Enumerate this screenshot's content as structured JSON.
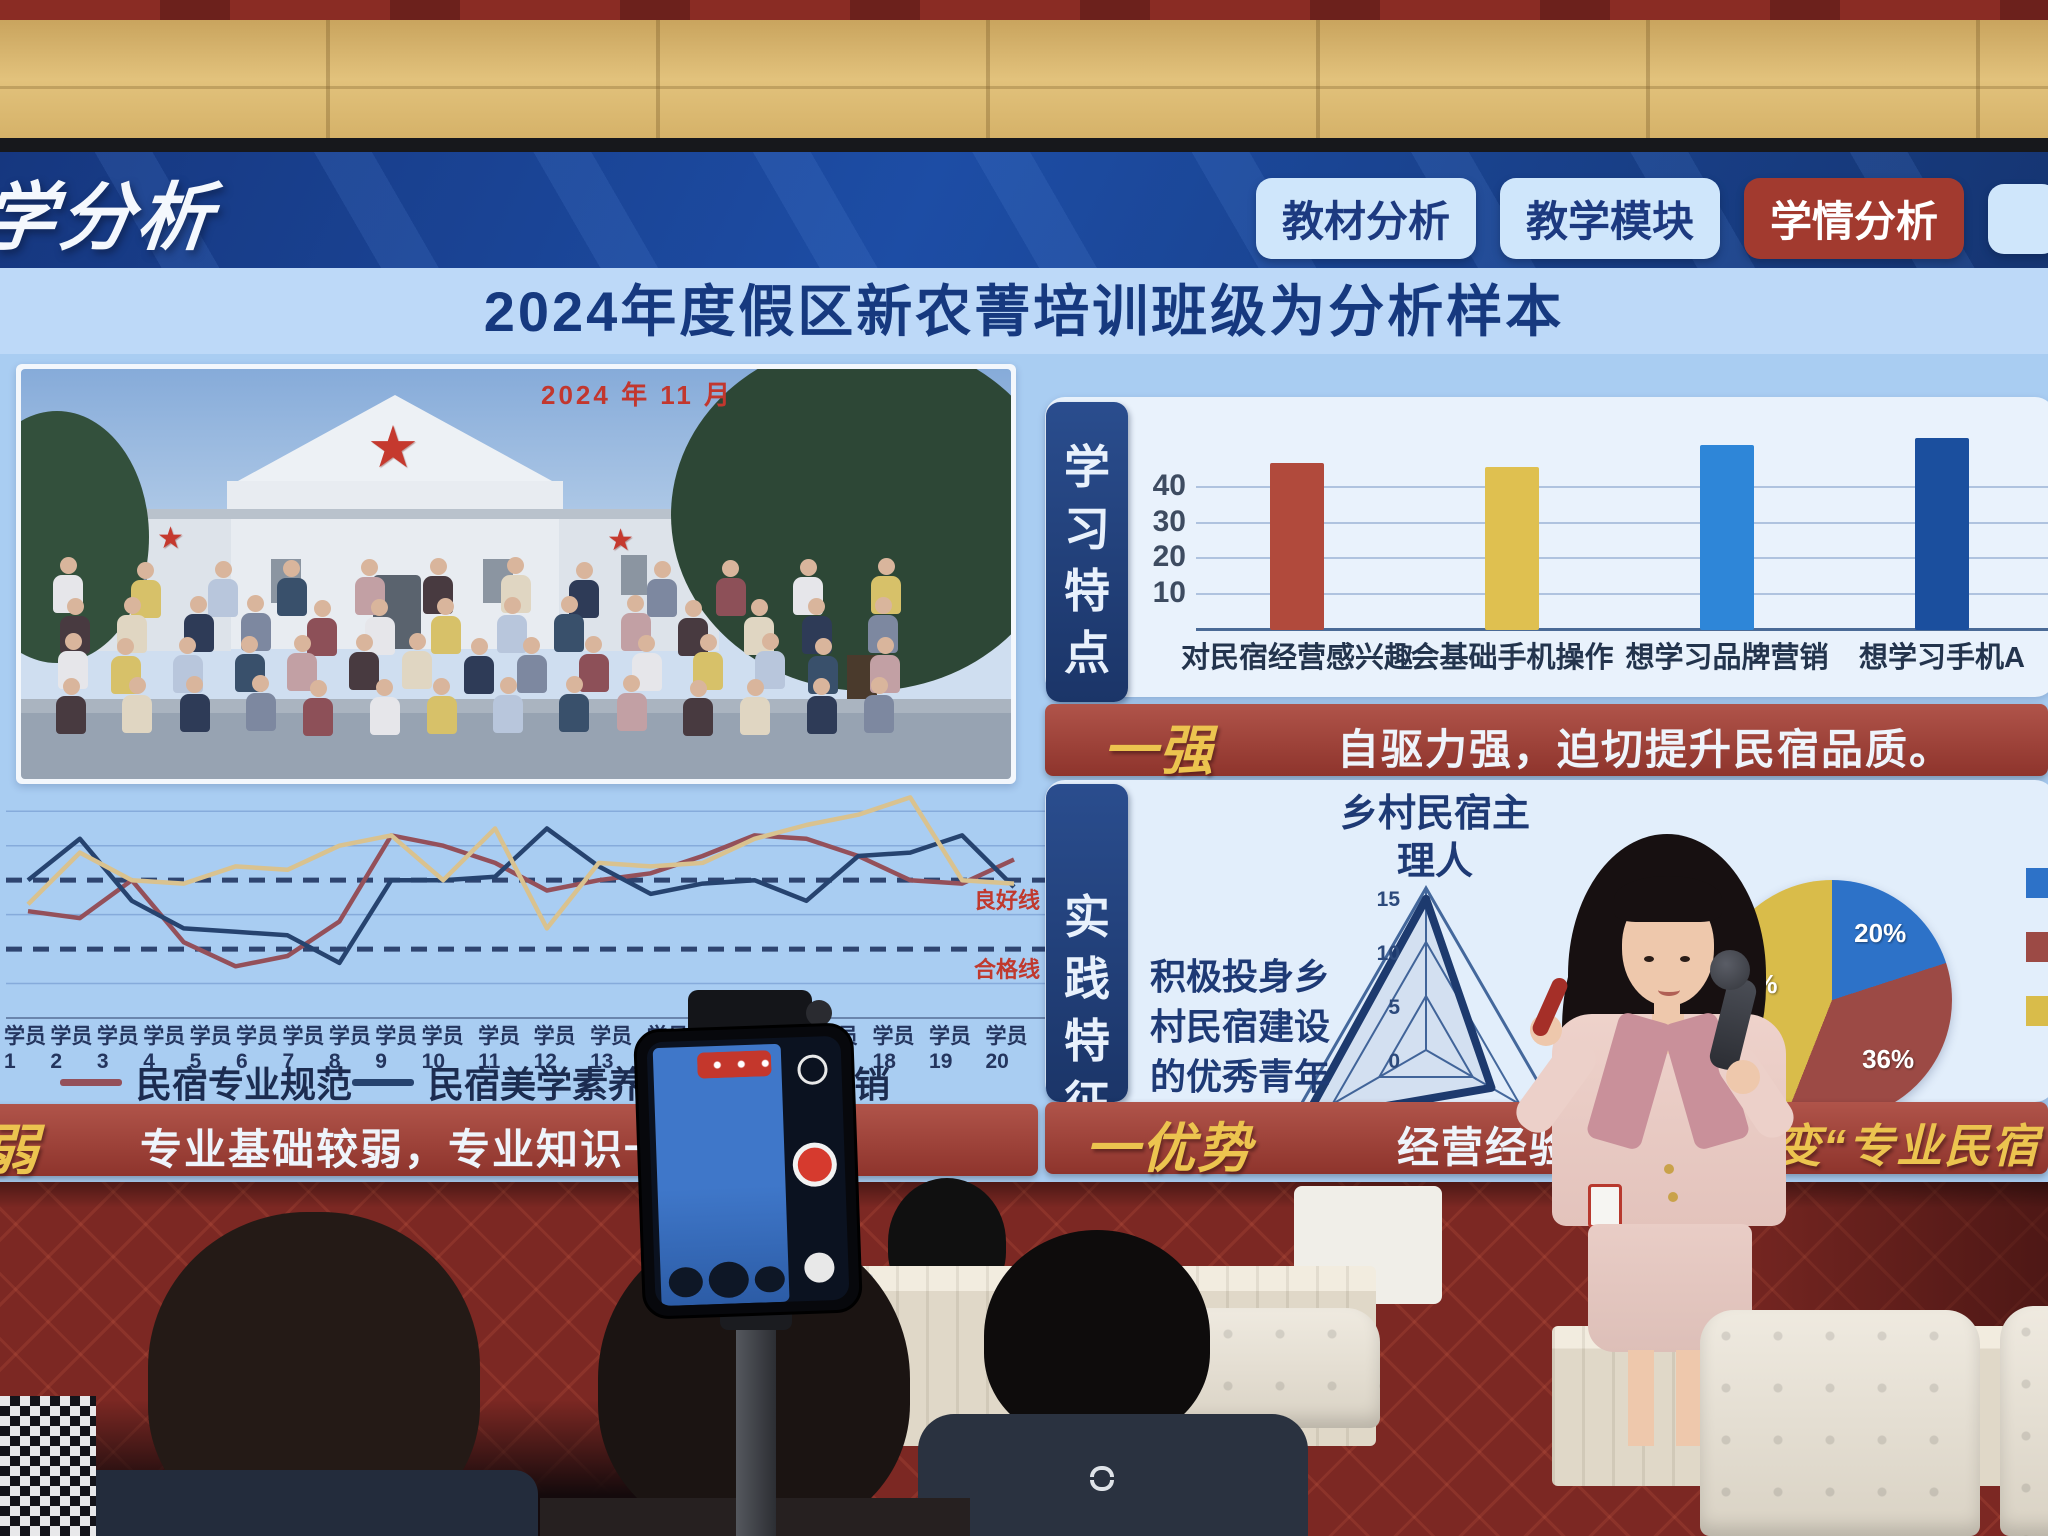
{
  "screen": {
    "deck_title_partial": "学分析",
    "nav_tabs": [
      {
        "label": "教材分析",
        "active": false
      },
      {
        "label": "教学模块",
        "active": false
      },
      {
        "label": "学情分析",
        "active": true
      }
    ],
    "slide": {
      "title": "2024年度假区新农菁培训班级为分析样本",
      "photo_caption": "2024 年 11 月",
      "learning": {
        "tab": "学习特点",
        "banner_tag": "一强",
        "banner_text": "自驱力强，迫切提升民宿品质。"
      },
      "practice": {
        "tab": "实践特征",
        "radar_title_lines": [
          "乡村民宿主",
          "理人"
        ],
        "side_text_lines": [
          "积极投身乡",
          "村民宿建设",
          "的优秀青年"
        ],
        "banner_tag": "一优势",
        "banner_text_white": "经营经验",
        "banner_text_gold": "蜕变“专业民宿"
      },
      "weak_banner": {
        "tag": "弱",
        "text": "专业基础较弱，专业知识一知半解。"
      }
    }
  },
  "chart_data": [
    {
      "type": "bar",
      "section": "学习特点",
      "categories": [
        "对民宿经营感兴趣",
        "会基础手机操作",
        "想学习品牌营销",
        "想学习手机A"
      ],
      "values": [
        47,
        46,
        52,
        54
      ],
      "colors": [
        "#b14a3c",
        "#dfc050",
        "#2e86d8",
        "#1b4f9e"
      ],
      "yticks": [
        10,
        20,
        30,
        40
      ],
      "ylim": [
        0,
        58
      ],
      "grid": true
    },
    {
      "type": "line",
      "x": [
        "学员1",
        "学员2",
        "学员3",
        "学员4",
        "学员5",
        "学员6",
        "学员7",
        "学员8",
        "学员9",
        "学员10",
        "学员11",
        "学员12",
        "学员13",
        "学员14",
        "学员15",
        "学员16",
        "学员17",
        "学员18",
        "学员19",
        "学员20"
      ],
      "series": [
        {
          "name": "民宿专业规范",
          "color": "#94505a",
          "values": [
            71,
            69,
            80,
            62,
            55,
            58,
            68,
            93,
            90,
            85,
            77,
            80,
            82,
            87,
            93,
            92,
            87,
            80,
            79,
            86
          ]
        },
        {
          "name": "民宿美学素养",
          "color": "#26436f",
          "values": [
            80,
            92,
            74,
            66,
            65,
            64,
            56,
            80,
            80,
            81,
            95,
            84,
            76,
            79,
            80,
            74,
            87,
            88,
            93,
            78
          ]
        },
        {
          "name": "营销",
          "color": "#d9c28f",
          "values": [
            73,
            88,
            80,
            79,
            84,
            83,
            90,
            93,
            80,
            95,
            66,
            85,
            84,
            85,
            92,
            96,
            99,
            104,
            80,
            79
          ]
        }
      ],
      "reference_lines": [
        {
          "label": "良好线",
          "value": 80
        },
        {
          "label": "合格线",
          "value": 60
        }
      ],
      "ylim": [
        40,
        105
      ],
      "grid": true,
      "legend_position": "bottom"
    },
    {
      "type": "radar",
      "axes_labels": [
        "乡村民宿主理人"
      ],
      "ticks": [
        0,
        5,
        10,
        15
      ],
      "values_approx": [
        14,
        13,
        7
      ]
    },
    {
      "type": "pie",
      "slices": [
        {
          "label": "20%",
          "value": 20,
          "color": "#2d72c8"
        },
        {
          "label": "36%",
          "value": 36,
          "color": "#9c4a45"
        },
        {
          "label": "44%",
          "value": 44,
          "color": "#d9bc4a"
        }
      ],
      "legend_colors": [
        "#2d72c8",
        "#9c4a45",
        "#d9bc4a"
      ]
    }
  ],
  "colors": {
    "screen_header": "#1d4da5",
    "slide_bg": "#a9cdf2",
    "banner_red": "#9d4038",
    "gold_accent": "#ecc44f",
    "navy_text": "#16397f",
    "active_tab_red": "#a23a2f",
    "wall_gold": "#e2c27c",
    "record_red": "#d63a2e"
  }
}
